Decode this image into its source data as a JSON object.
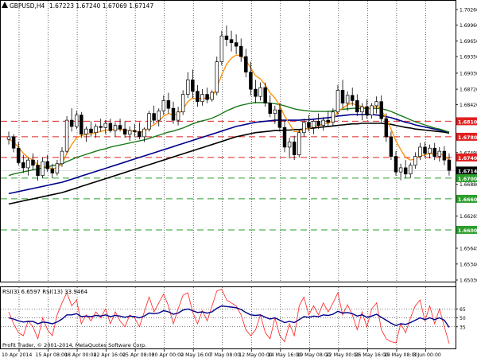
{
  "header": {
    "symbol_label": "GBPUSD,H4",
    "ohlc_text": "1.67223 1.67240 1.67069 1.67147"
  },
  "colors": {
    "background": "#ffffff",
    "bull_candle": "#ffffff",
    "bear_candle": "#000000",
    "ma_fast": "#ff8c00",
    "ma_mid": "#1a7a1a",
    "ma_slow_blue": "#00008b",
    "ma_slow_black": "#000000",
    "resistance_line": "#e02020",
    "support_line": "#2a9d2a",
    "resistance_badge": "#e02020",
    "support_badge": "#2a9d2a",
    "current_price_badge": "#000000",
    "rsi_fast": "#ff2020",
    "rsi_slow": "#00008b",
    "grid": "#000000"
  },
  "chart_data": {
    "type": "candlestick",
    "symbol": "GBPUSD",
    "timeframe": "H4",
    "ylim": [
      1.6503,
      1.7026
    ],
    "y_ticks": [
      "1.70260",
      "1.69960",
      "1.69650",
      "1.69350",
      "1.69030",
      "1.68720",
      "1.68420",
      "1.68100",
      "1.67800",
      "1.67495",
      "1.67400",
      "1.67147",
      "1.67000",
      "1.66880",
      "1.66600",
      "1.66265",
      "1.66000",
      "1.65645",
      "1.65340",
      "1.65030"
    ],
    "x_tick_labels": [
      "10 Apr 2014",
      "15 Apr 08:00",
      "18 Apr 00:00",
      "22 Apr 16:00",
      "25 Apr 08:00",
      "30 Apr 00:00",
      "2 May 16:00",
      "7 May 08:00",
      "12 May 00:00",
      "14 May 16:00",
      "19 May 08:00",
      "22 May 00:00",
      "26 May 16:00",
      "29 May 08:00",
      "3 Jun 00:00"
    ],
    "resistance_levels": [
      1.681,
      1.678,
      1.674
    ],
    "support_levels": [
      1.67,
      1.666,
      1.66
    ],
    "current_price": 1.67147,
    "price_badges": [
      "1.68100",
      "1.67800",
      "1.67400",
      "1.67147",
      "1.67000",
      "1.66600",
      "1.66000"
    ],
    "candles": [
      {
        "o": 1.6775,
        "h": 1.679,
        "l": 1.6765,
        "c": 1.678
      },
      {
        "o": 1.678,
        "h": 1.6785,
        "l": 1.675,
        "c": 1.6758
      },
      {
        "o": 1.6758,
        "h": 1.677,
        "l": 1.6725,
        "c": 1.673
      },
      {
        "o": 1.673,
        "h": 1.6745,
        "l": 1.671,
        "c": 1.672
      },
      {
        "o": 1.672,
        "h": 1.674,
        "l": 1.6705,
        "c": 1.6735
      },
      {
        "o": 1.6735,
        "h": 1.6748,
        "l": 1.6715,
        "c": 1.6725
      },
      {
        "o": 1.6725,
        "h": 1.6735,
        "l": 1.6695,
        "c": 1.6705
      },
      {
        "o": 1.6705,
        "h": 1.674,
        "l": 1.67,
        "c": 1.6732
      },
      {
        "o": 1.6732,
        "h": 1.6745,
        "l": 1.6712,
        "c": 1.6718
      },
      {
        "o": 1.6718,
        "h": 1.6728,
        "l": 1.67,
        "c": 1.671
      },
      {
        "o": 1.671,
        "h": 1.6735,
        "l": 1.6705,
        "c": 1.6728
      },
      {
        "o": 1.6728,
        "h": 1.676,
        "l": 1.6722,
        "c": 1.6752
      },
      {
        "o": 1.6752,
        "h": 1.682,
        "l": 1.6748,
        "c": 1.6812
      },
      {
        "o": 1.6812,
        "h": 1.6835,
        "l": 1.679,
        "c": 1.68
      },
      {
        "o": 1.68,
        "h": 1.683,
        "l": 1.6795,
        "c": 1.6822
      },
      {
        "o": 1.6822,
        "h": 1.6828,
        "l": 1.6778,
        "c": 1.6785
      },
      {
        "o": 1.6785,
        "h": 1.68,
        "l": 1.677,
        "c": 1.6795
      },
      {
        "o": 1.6795,
        "h": 1.681,
        "l": 1.678,
        "c": 1.6788
      },
      {
        "o": 1.6788,
        "h": 1.6805,
        "l": 1.6778,
        "c": 1.68
      },
      {
        "o": 1.68,
        "h": 1.6815,
        "l": 1.679,
        "c": 1.6798
      },
      {
        "o": 1.6798,
        "h": 1.6812,
        "l": 1.6785,
        "c": 1.6806
      },
      {
        "o": 1.6806,
        "h": 1.6815,
        "l": 1.6788,
        "c": 1.6792
      },
      {
        "o": 1.6792,
        "h": 1.6808,
        "l": 1.678,
        "c": 1.6802
      },
      {
        "o": 1.6802,
        "h": 1.6815,
        "l": 1.679,
        "c": 1.6795
      },
      {
        "o": 1.6795,
        "h": 1.681,
        "l": 1.6778,
        "c": 1.6785
      },
      {
        "o": 1.6785,
        "h": 1.68,
        "l": 1.6772,
        "c": 1.6792
      },
      {
        "o": 1.6792,
        "h": 1.6805,
        "l": 1.678,
        "c": 1.679
      },
      {
        "o": 1.679,
        "h": 1.6808,
        "l": 1.6775,
        "c": 1.678
      },
      {
        "o": 1.678,
        "h": 1.6798,
        "l": 1.677,
        "c": 1.6795
      },
      {
        "o": 1.6795,
        "h": 1.683,
        "l": 1.679,
        "c": 1.6825
      },
      {
        "o": 1.6825,
        "h": 1.684,
        "l": 1.6805,
        "c": 1.6812
      },
      {
        "o": 1.6812,
        "h": 1.6835,
        "l": 1.68,
        "c": 1.683
      },
      {
        "o": 1.683,
        "h": 1.686,
        "l": 1.6822,
        "c": 1.685
      },
      {
        "o": 1.685,
        "h": 1.6865,
        "l": 1.6825,
        "c": 1.6835
      },
      {
        "o": 1.6835,
        "h": 1.6848,
        "l": 1.6805,
        "c": 1.6812
      },
      {
        "o": 1.6812,
        "h": 1.6838,
        "l": 1.6802,
        "c": 1.6828
      },
      {
        "o": 1.6828,
        "h": 1.687,
        "l": 1.6822,
        "c": 1.6862
      },
      {
        "o": 1.6862,
        "h": 1.6905,
        "l": 1.6855,
        "c": 1.689
      },
      {
        "o": 1.689,
        "h": 1.691,
        "l": 1.6855,
        "c": 1.6868
      },
      {
        "o": 1.6868,
        "h": 1.688,
        "l": 1.6838,
        "c": 1.6848
      },
      {
        "o": 1.6848,
        "h": 1.6872,
        "l": 1.684,
        "c": 1.6862
      },
      {
        "o": 1.6862,
        "h": 1.6875,
        "l": 1.6845,
        "c": 1.6852
      },
      {
        "o": 1.6852,
        "h": 1.687,
        "l": 1.6848,
        "c": 1.6866
      },
      {
        "o": 1.6866,
        "h": 1.6935,
        "l": 1.686,
        "c": 1.6925
      },
      {
        "o": 1.6925,
        "h": 1.6985,
        "l": 1.6918,
        "c": 1.6975
      },
      {
        "o": 1.6975,
        "h": 1.6995,
        "l": 1.6955,
        "c": 1.6968
      },
      {
        "o": 1.6968,
        "h": 1.6985,
        "l": 1.6945,
        "c": 1.6962
      },
      {
        "o": 1.6962,
        "h": 1.6978,
        "l": 1.694,
        "c": 1.6955
      },
      {
        "o": 1.6955,
        "h": 1.697,
        "l": 1.6925,
        "c": 1.6935
      },
      {
        "o": 1.6935,
        "h": 1.695,
        "l": 1.6895,
        "c": 1.6905
      },
      {
        "o": 1.6905,
        "h": 1.6925,
        "l": 1.686,
        "c": 1.6872
      },
      {
        "o": 1.6872,
        "h": 1.689,
        "l": 1.6845,
        "c": 1.6858
      },
      {
        "o": 1.6858,
        "h": 1.6885,
        "l": 1.685,
        "c": 1.6875
      },
      {
        "o": 1.6875,
        "h": 1.6885,
        "l": 1.6838,
        "c": 1.6845
      },
      {
        "o": 1.6845,
        "h": 1.686,
        "l": 1.6818,
        "c": 1.6825
      },
      {
        "o": 1.6825,
        "h": 1.684,
        "l": 1.6805,
        "c": 1.6832
      },
      {
        "o": 1.6832,
        "h": 1.6845,
        "l": 1.679,
        "c": 1.6798
      },
      {
        "o": 1.6798,
        "h": 1.6812,
        "l": 1.675,
        "c": 1.676
      },
      {
        "o": 1.676,
        "h": 1.6778,
        "l": 1.6738,
        "c": 1.677
      },
      {
        "o": 1.677,
        "h": 1.6782,
        "l": 1.6735,
        "c": 1.6745
      },
      {
        "o": 1.6745,
        "h": 1.6795,
        "l": 1.674,
        "c": 1.6788
      },
      {
        "o": 1.6788,
        "h": 1.6815,
        "l": 1.678,
        "c": 1.6808
      },
      {
        "o": 1.6808,
        "h": 1.6822,
        "l": 1.679,
        "c": 1.6798
      },
      {
        "o": 1.6798,
        "h": 1.6815,
        "l": 1.6785,
        "c": 1.681
      },
      {
        "o": 1.681,
        "h": 1.6825,
        "l": 1.6795,
        "c": 1.6802
      },
      {
        "o": 1.6802,
        "h": 1.6818,
        "l": 1.6792,
        "c": 1.6812
      },
      {
        "o": 1.6812,
        "h": 1.683,
        "l": 1.68,
        "c": 1.6808
      },
      {
        "o": 1.6808,
        "h": 1.6835,
        "l": 1.68,
        "c": 1.6828
      },
      {
        "o": 1.6828,
        "h": 1.688,
        "l": 1.6822,
        "c": 1.687
      },
      {
        "o": 1.687,
        "h": 1.689,
        "l": 1.6835,
        "c": 1.6845
      },
      {
        "o": 1.6845,
        "h": 1.6868,
        "l": 1.683,
        "c": 1.686
      },
      {
        "o": 1.686,
        "h": 1.6875,
        "l": 1.684,
        "c": 1.685
      },
      {
        "o": 1.685,
        "h": 1.6862,
        "l": 1.682,
        "c": 1.6828
      },
      {
        "o": 1.6828,
        "h": 1.6845,
        "l": 1.6812,
        "c": 1.6838
      },
      {
        "o": 1.6838,
        "h": 1.6852,
        "l": 1.6815,
        "c": 1.6822
      },
      {
        "o": 1.6822,
        "h": 1.6845,
        "l": 1.6815,
        "c": 1.684
      },
      {
        "o": 1.684,
        "h": 1.6858,
        "l": 1.6825,
        "c": 1.6848
      },
      {
        "o": 1.6848,
        "h": 1.686,
        "l": 1.6808,
        "c": 1.6815
      },
      {
        "o": 1.6815,
        "h": 1.6825,
        "l": 1.677,
        "c": 1.678
      },
      {
        "o": 1.678,
        "h": 1.679,
        "l": 1.6735,
        "c": 1.6742
      },
      {
        "o": 1.6742,
        "h": 1.6752,
        "l": 1.6705,
        "c": 1.6712
      },
      {
        "o": 1.6712,
        "h": 1.6728,
        "l": 1.6696,
        "c": 1.672
      },
      {
        "o": 1.672,
        "h": 1.6735,
        "l": 1.67,
        "c": 1.6708
      },
      {
        "o": 1.6708,
        "h": 1.673,
        "l": 1.67,
        "c": 1.6725
      },
      {
        "o": 1.6725,
        "h": 1.675,
        "l": 1.6718,
        "c": 1.6742
      },
      {
        "o": 1.6742,
        "h": 1.6768,
        "l": 1.6735,
        "c": 1.676
      },
      {
        "o": 1.676,
        "h": 1.677,
        "l": 1.674,
        "c": 1.6748
      },
      {
        "o": 1.6748,
        "h": 1.6765,
        "l": 1.6738,
        "c": 1.6758
      },
      {
        "o": 1.6758,
        "h": 1.6768,
        "l": 1.6735,
        "c": 1.6742
      },
      {
        "o": 1.6742,
        "h": 1.676,
        "l": 1.6732,
        "c": 1.6752
      },
      {
        "o": 1.6752,
        "h": 1.6762,
        "l": 1.6725,
        "c": 1.6735
      },
      {
        "o": 1.6735,
        "h": 1.6748,
        "l": 1.6705,
        "c": 1.6715
      }
    ],
    "ma_fast": [
      1.6775,
      1.677,
      1.676,
      1.6748,
      1.674,
      1.6735,
      1.6725,
      1.6722,
      1.6722,
      1.6718,
      1.672,
      1.6728,
      1.6748,
      1.6765,
      1.6778,
      1.6782,
      1.6785,
      1.6786,
      1.6788,
      1.679,
      1.6793,
      1.6793,
      1.6795,
      1.6795,
      1.6792,
      1.6792,
      1.6791,
      1.6789,
      1.679,
      1.6798,
      1.6803,
      1.681,
      1.682,
      1.6825,
      1.6822,
      1.6824,
      1.6833,
      1.6848,
      1.6855,
      1.6853,
      1.6855,
      1.6854,
      1.6857,
      1.6875,
      1.69,
      1.692,
      1.6932,
      1.6938,
      1.6937,
      1.6928,
      1.6913,
      1.6898,
      1.6892,
      1.688,
      1.6865,
      1.6855,
      1.684,
      1.682,
      1.6805,
      1.679,
      1.679,
      1.6795,
      1.6796,
      1.68,
      1.6801,
      1.6805,
      1.6806,
      1.6812,
      1.683,
      1.6835,
      1.6842,
      1.6845,
      1.684,
      1.6839,
      1.6834,
      1.6836,
      1.684,
      1.6832,
      1.6815,
      1.6795,
      1.6772,
      1.6755,
      1.674,
      1.6735,
      1.6737,
      1.6743,
      1.6745,
      1.6748,
      1.6746,
      1.6748,
      1.6743,
      1.6735
    ],
    "ma_mid": [
      1.6705,
      1.6708,
      1.671,
      1.6712,
      1.6714,
      1.6716,
      1.6718,
      1.672,
      1.6722,
      1.6724,
      1.6726,
      1.6728,
      1.6732,
      1.6736,
      1.674,
      1.6743,
      1.6746,
      1.6749,
      1.6752,
      1.6755,
      1.6757,
      1.676,
      1.6762,
      1.6764,
      1.6766,
      1.6768,
      1.677,
      1.6772,
      1.6774,
      1.6777,
      1.678,
      1.6783,
      1.6786,
      1.6789,
      1.6791,
      1.6794,
      1.6797,
      1.6801,
      1.6805,
      1.6808,
      1.6811,
      1.6813,
      1.6816,
      1.682,
      1.6825,
      1.683,
      1.6834,
      1.6838,
      1.6841,
      1.6843,
      1.6845,
      1.6846,
      1.6846,
      1.6846,
      1.6845,
      1.6844,
      1.6842,
      1.684,
      1.6837,
      1.6834,
      1.6832,
      1.6831,
      1.683,
      1.6829,
      1.6829,
      1.6829,
      1.6829,
      1.683,
      1.6832,
      1.6833,
      1.6834,
      1.6835,
      1.6835,
      1.6835,
      1.6835,
      1.6835,
      1.6835,
      1.6834,
      1.6832,
      1.6829,
      1.6825,
      1.6821,
      1.6817,
      1.6813,
      1.6809,
      1.6806,
      1.6803,
      1.68,
      1.6797,
      1.6795,
      1.6792,
      1.6789
    ],
    "ma_slow_blue": [
      1.667,
      1.6672,
      1.6674,
      1.6676,
      1.6678,
      1.668,
      1.6682,
      1.6684,
      1.6686,
      1.6688,
      1.669,
      1.6692,
      1.6695,
      1.6698,
      1.6701,
      1.6704,
      1.6707,
      1.671,
      1.6713,
      1.6716,
      1.6719,
      1.6722,
      1.6725,
      1.6728,
      1.6731,
      1.6734,
      1.6737,
      1.674,
      1.6743,
      1.6746,
      1.6749,
      1.6752,
      1.6755,
      1.6758,
      1.6761,
      1.6764,
      1.6767,
      1.677,
      1.6773,
      1.6776,
      1.6779,
      1.6782,
      1.6785,
      1.6788,
      1.6791,
      1.6794,
      1.6797,
      1.68,
      1.6802,
      1.6804,
      1.6806,
      1.6808,
      1.6809,
      1.681,
      1.6811,
      1.6812,
      1.6812,
      1.6812,
      1.6812,
      1.6812,
      1.6812,
      1.6813,
      1.6813,
      1.6814,
      1.6815,
      1.6816,
      1.6817,
      1.6818,
      1.682,
      1.6821,
      1.6822,
      1.6823,
      1.6823,
      1.6823,
      1.6823,
      1.6823,
      1.6822,
      1.6821,
      1.6819,
      1.6817,
      1.6814,
      1.6811,
      1.6808,
      1.6806,
      1.6803,
      1.6801,
      1.6799,
      1.6797,
      1.6795,
      1.6793,
      1.6791,
      1.6789
    ],
    "ma_slow_black": [
      1.665,
      1.6652,
      1.6654,
      1.6656,
      1.6658,
      1.666,
      1.6662,
      1.6664,
      1.6666,
      1.6668,
      1.667,
      1.6672,
      1.6675,
      1.6678,
      1.6681,
      1.6684,
      1.6687,
      1.669,
      1.6693,
      1.6696,
      1.6699,
      1.6702,
      1.6705,
      1.6708,
      1.6711,
      1.6714,
      1.6717,
      1.672,
      1.6723,
      1.6726,
      1.6729,
      1.6732,
      1.6735,
      1.6738,
      1.6741,
      1.6744,
      1.6747,
      1.675,
      1.6753,
      1.6756,
      1.6759,
      1.6762,
      1.6765,
      1.6768,
      1.6771,
      1.6774,
      1.6777,
      1.678,
      1.6782,
      1.6784,
      1.6786,
      1.6788,
      1.6789,
      1.679,
      1.6791,
      1.6792,
      1.6792,
      1.6793,
      1.6793,
      1.6794,
      1.6794,
      1.6795,
      1.6796,
      1.6797,
      1.6798,
      1.6799,
      1.68,
      1.6801,
      1.6802,
      1.6803,
      1.6804,
      1.6805,
      1.6805,
      1.6806,
      1.6806,
      1.6806,
      1.6806,
      1.6806,
      1.6805,
      1.6804,
      1.6802,
      1.68,
      1.6798,
      1.6797,
      1.6795,
      1.6794,
      1.6793,
      1.6792,
      1.6791,
      1.679,
      1.6789,
      1.6787
    ]
  },
  "rsi": {
    "label": "RSI(3) 6.6597 RSI(13) 33.9464",
    "levels": [
      65,
      50,
      35
    ],
    "level_labels": [
      "65",
      "50",
      "35"
    ],
    "fast": [
      60,
      40,
      25,
      20,
      45,
      35,
      15,
      50,
      30,
      20,
      55,
      75,
      92,
      70,
      80,
      40,
      55,
      45,
      60,
      50,
      65,
      40,
      60,
      45,
      35,
      55,
      50,
      35,
      60,
      85,
      60,
      75,
      90,
      70,
      40,
      65,
      88,
      92,
      60,
      40,
      62,
      45,
      70,
      95,
      98,
      80,
      75,
      70,
      55,
      30,
      20,
      30,
      55,
      25,
      15,
      50,
      20,
      10,
      40,
      20,
      70,
      85,
      55,
      70,
      55,
      75,
      60,
      75,
      92,
      55,
      72,
      55,
      30,
      60,
      35,
      65,
      75,
      30,
      15,
      10,
      8,
      40,
      25,
      50,
      70,
      80,
      45,
      70,
      40,
      65,
      35,
      7
    ],
    "slow": [
      50,
      48,
      45,
      43,
      44,
      44,
      40,
      43,
      42,
      40,
      43,
      48,
      55,
      55,
      57,
      52,
      53,
      52,
      54,
      53,
      55,
      52,
      54,
      53,
      51,
      53,
      52,
      50,
      53,
      58,
      57,
      58,
      62,
      60,
      56,
      58,
      63,
      65,
      62,
      59,
      60,
      58,
      60,
      66,
      70,
      69,
      68,
      67,
      64,
      59,
      55,
      54,
      55,
      51,
      48,
      50,
      46,
      42,
      44,
      42,
      47,
      52,
      51,
      53,
      52,
      55,
      54,
      56,
      61,
      58,
      59,
      57,
      53,
      55,
      51,
      53,
      56,
      51,
      46,
      41,
      37,
      40,
      39,
      42,
      46,
      50,
      47,
      50,
      47,
      50,
      46,
      34
    ]
  },
  "copyright": "Profit Trader, © 2001-2014, MetaQuotes Software Corp."
}
